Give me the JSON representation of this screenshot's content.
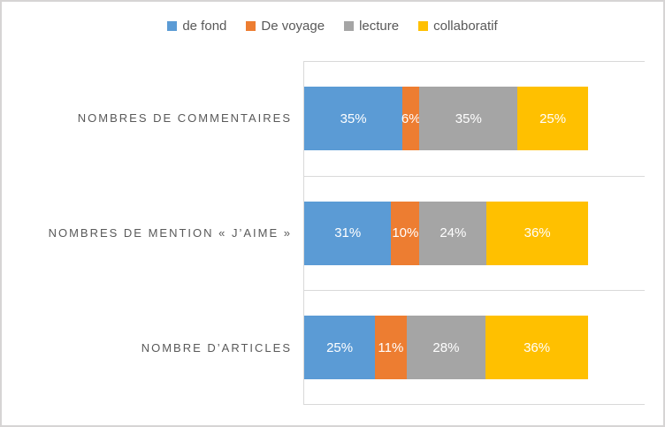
{
  "chart_data": {
    "type": "bar",
    "subtype": "stacked-horizontal-100pct",
    "orientation": "horizontal",
    "title": "",
    "xlabel": "",
    "ylabel": "",
    "legend_position": "top",
    "grid": "category-band-separators-only",
    "axis_max_percent": 120,
    "categories": [
      "NOMBRES DE COMMENTAIRES",
      "NOMBRES DE MENTION « J’AIME »",
      "NOMBRE D’ARTICLES"
    ],
    "series": [
      {
        "name": "de fond",
        "color": "#5B9BD5",
        "values": [
          35,
          31,
          25
        ]
      },
      {
        "name": "De voyage",
        "color": "#ED7D31",
        "values": [
          6,
          10,
          11
        ]
      },
      {
        "name": "lecture",
        "color": "#A5A5A5",
        "values": [
          35,
          24,
          28
        ]
      },
      {
        "name": "collaboratif",
        "color": "#FFC000",
        "values": [
          25,
          36,
          36
        ]
      }
    ],
    "data_labels": [
      [
        "35%",
        "6%",
        "35%",
        "25%"
      ],
      [
        "31%",
        "10%",
        "24%",
        "36%"
      ],
      [
        "25%",
        "11%",
        "28%",
        "36%"
      ]
    ]
  },
  "colors": {
    "gridline": "#D9D9D9",
    "frame_border": "#D6D4D4",
    "category_label_text": "#595959",
    "legend_text": "#595959",
    "data_label_text": "#FFFFFF",
    "background": "#FFFFFF"
  }
}
